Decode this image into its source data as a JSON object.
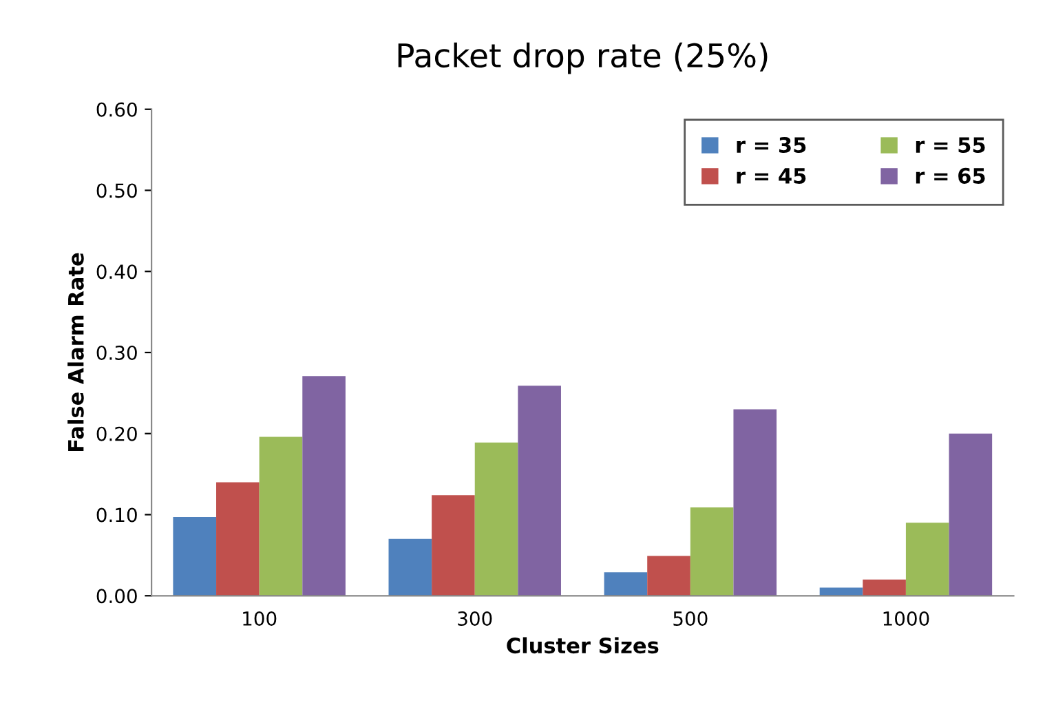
{
  "chart_data": {
    "type": "bar",
    "title": "Packet drop rate (25%)",
    "xlabel": "Cluster Sizes",
    "ylabel": "False Alarm Rate",
    "categories": [
      "100",
      "300",
      "500",
      "1000"
    ],
    "series": [
      {
        "name": "r = 35",
        "color": "#4f81bd",
        "values": [
          0.097,
          0.07,
          0.029,
          0.01
        ]
      },
      {
        "name": "r = 45",
        "color": "#c0504d",
        "values": [
          0.14,
          0.124,
          0.049,
          0.02
        ]
      },
      {
        "name": "r = 55",
        "color": "#9bbb59",
        "values": [
          0.196,
          0.189,
          0.109,
          0.09
        ]
      },
      {
        "name": "r = 65",
        "color": "#8064a2",
        "values": [
          0.271,
          0.259,
          0.23,
          0.2
        ]
      }
    ],
    "ylim": [
      0,
      0.6
    ],
    "yticks": [
      {
        "value": 0,
        "label": "0.00"
      },
      {
        "value": 0.1,
        "label": "0.10"
      },
      {
        "value": 0.2,
        "label": "0.20"
      },
      {
        "value": 0.3,
        "label": "0.30"
      },
      {
        "value": 0.4,
        "label": "0.40"
      },
      {
        "value": 0.5,
        "label": "0.50"
      },
      {
        "value": 0.6,
        "label": "0.60"
      }
    ],
    "grid": false,
    "legend": "top right"
  }
}
